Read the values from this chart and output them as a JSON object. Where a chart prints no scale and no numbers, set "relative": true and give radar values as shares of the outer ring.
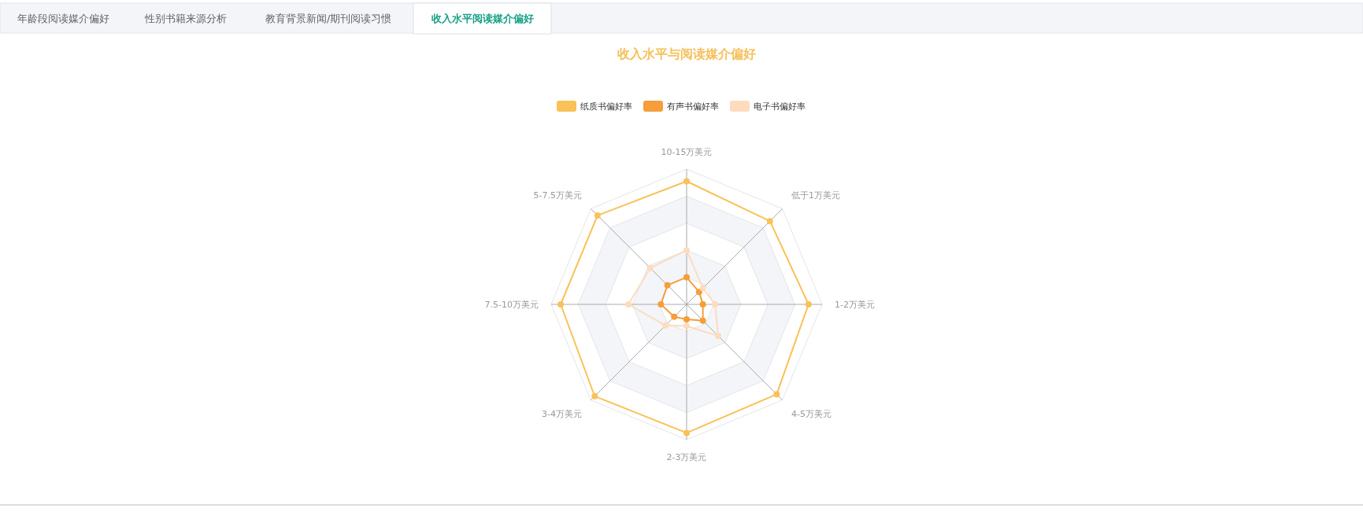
{
  "chart_data": {
    "type": "radar",
    "title": "收入水平与阅读媒介偏好",
    "annotations": [
      "年龄段阅读媒介偏好",
      "性别书籍来源分析",
      "教育背景新闻/期刊阅读习惯",
      "收入水平阅读媒介偏好"
    ],
    "categories": [
      "10-15万美元",
      "低于1万美元",
      "1-2万美元",
      "4-5万美元",
      "2-3万美元",
      "3-4万美元",
      "7.5-10万美元",
      "5-7.5万美元"
    ],
    "relative": true,
    "legend": "top",
    "marker": "circle",
    "series": [
      {
        "name": "纸质书偏好率",
        "color": "#f9c158",
        "values": [
          0.91,
          0.87,
          0.9,
          0.94,
          0.95,
          0.96,
          0.93,
          0.93
        ]
      },
      {
        "name": "有声书偏好率",
        "color": "#f59e3a",
        "values": [
          0.2,
          0.13,
          0.12,
          0.17,
          0.11,
          0.13,
          0.19,
          0.2
        ]
      },
      {
        "name": "电子书偏好率",
        "color": "#fddcbd",
        "values": [
          0.4,
          0.17,
          0.21,
          0.33,
          0.16,
          0.22,
          0.43,
          0.38
        ]
      }
    ]
  }
}
